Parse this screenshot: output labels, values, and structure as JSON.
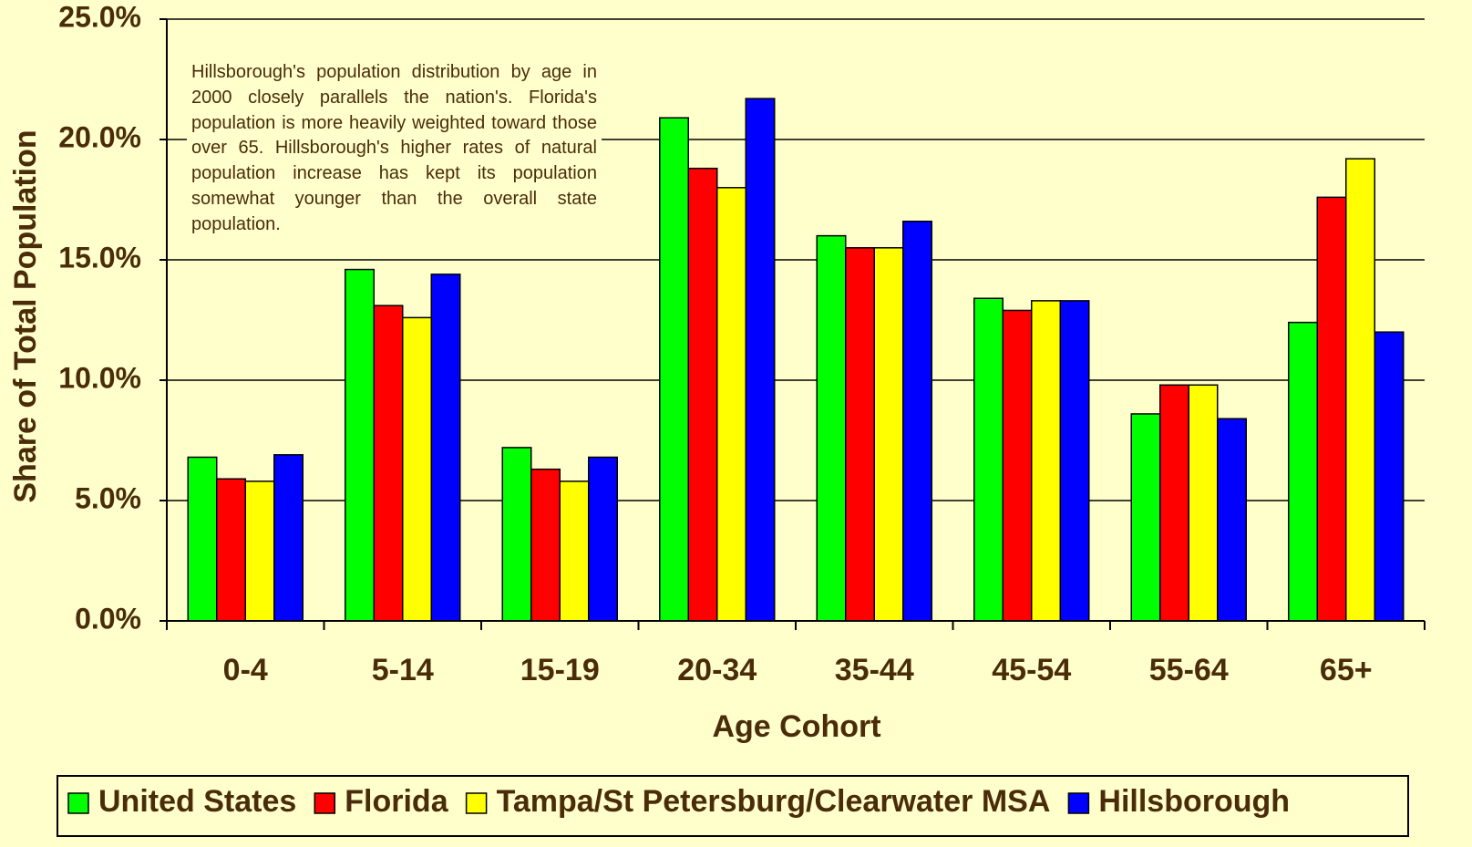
{
  "chart_data": {
    "type": "bar",
    "x_label": "Age Cohort",
    "y_label": "Share of Total Population",
    "annotation": "Hillsborough's population distribution by age in 2000 closely parallels the nation's. Florida's population is more heavily weighted toward those over 65. Hillsborough's higher rates of natural population increase has kept its population somewhat younger than the overall state population.",
    "categories": [
      "0-4",
      "5-14",
      "15-19",
      "20-34",
      "35-44",
      "45-54",
      "55-64",
      "65+"
    ],
    "series": [
      {
        "name": "United States",
        "color": "#00ff00",
        "values": [
          6.8,
          14.6,
          7.2,
          20.9,
          16.0,
          13.4,
          8.6,
          12.4
        ]
      },
      {
        "name": "Florida",
        "color": "#ff0000",
        "values": [
          5.9,
          13.1,
          6.3,
          18.8,
          15.5,
          12.9,
          9.8,
          17.6
        ]
      },
      {
        "name": "Tampa/St Petersburg/Clearwater MSA",
        "color": "#ffff00",
        "values": [
          5.8,
          12.6,
          5.8,
          18.0,
          15.5,
          13.3,
          9.8,
          19.2
        ]
      },
      {
        "name": "Hillsborough",
        "color": "#0000ff",
        "values": [
          6.9,
          14.4,
          6.8,
          21.7,
          16.6,
          13.3,
          8.4,
          12.0
        ]
      }
    ],
    "ylim": [
      0,
      25
    ],
    "yticks": [
      {
        "value": 0,
        "label": "0.0%"
      },
      {
        "value": 5,
        "label": "5.0%"
      },
      {
        "value": 10,
        "label": "10.0%"
      },
      {
        "value": 15,
        "label": "15.0%"
      },
      {
        "value": 20,
        "label": "20.0%"
      },
      {
        "value": 25,
        "label": "25.0%"
      }
    ],
    "grid": true,
    "legend": "bottom"
  }
}
